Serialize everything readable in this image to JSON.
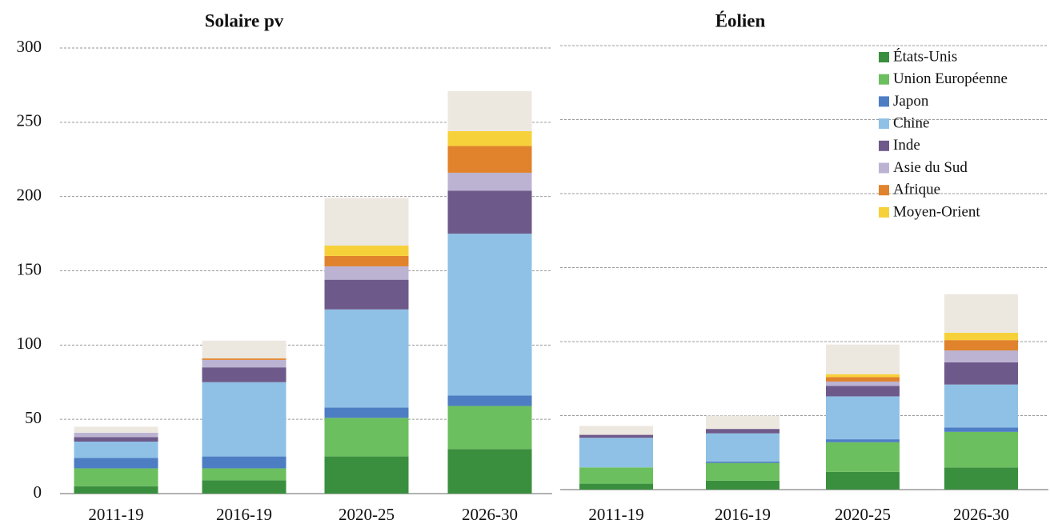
{
  "chart_data": [
    {
      "type": "stacked_bar",
      "title": "Solaire pv",
      "categories": [
        "2011-19",
        "2016-19",
        "2020-25",
        "2026-30"
      ],
      "ylim": [
        0,
        300
      ],
      "yticks": [
        0,
        50,
        100,
        150,
        200,
        250,
        300
      ],
      "grid": true,
      "ytick_labels": true,
      "series": [
        {
          "color": "#3a8f3e",
          "values": [
            5,
            9,
            25,
            30
          ]
        },
        {
          "color": "#6cbf5e",
          "values": [
            12,
            8,
            26,
            29
          ]
        },
        {
          "color": "#4d7ec4",
          "values": [
            7,
            8,
            7,
            7
          ]
        },
        {
          "color": "#8fc1e6",
          "values": [
            11,
            50,
            66,
            109
          ]
        },
        {
          "color": "#6e5a8a",
          "values": [
            3,
            10,
            20,
            29
          ]
        },
        {
          "color": "#bcb3d3",
          "values": [
            3,
            5,
            9,
            12
          ]
        },
        {
          "color": "#e0832c",
          "values": [
            0,
            1,
            7,
            18
          ]
        },
        {
          "color": "#f7d13a",
          "values": [
            0,
            0,
            7,
            10
          ]
        },
        {
          "color": "#ece8e0",
          "values": [
            4,
            12,
            32,
            27
          ]
        }
      ]
    },
    {
      "type": "stacked_bar",
      "title": "Éolien",
      "categories": [
        "2011-19",
        "2016-19",
        "2020-25",
        "2026-30"
      ],
      "ylim": [
        0,
        300
      ],
      "yticks": [
        0,
        50,
        100,
        150,
        200,
        250,
        300
      ],
      "grid": true,
      "ytick_labels": false,
      "legend": "upper right",
      "series": [
        {
          "name": "États-Unis",
          "color": "#3a8f3e",
          "values": [
            4,
            6,
            12,
            15
          ]
        },
        {
          "name": "Union Européenne",
          "color": "#6cbf5e",
          "values": [
            11,
            12,
            20,
            24
          ]
        },
        {
          "name": "Japon",
          "color": "#4d7ec4",
          "values": [
            0,
            1,
            2,
            3
          ]
        },
        {
          "name": "Chine",
          "color": "#8fc1e6",
          "values": [
            20,
            19,
            29,
            29
          ]
        },
        {
          "name": "Inde",
          "color": "#6e5a8a",
          "values": [
            2,
            3,
            7,
            15
          ]
        },
        {
          "name": "Asie du Sud",
          "color": "#bcb3d3",
          "values": [
            0,
            0,
            3,
            8
          ]
        },
        {
          "name": "Afrique",
          "color": "#e0832c",
          "values": [
            0,
            0,
            3,
            7
          ]
        },
        {
          "name": "Moyen-Orient",
          "color": "#f7d13a",
          "values": [
            0,
            0,
            2,
            5
          ]
        },
        {
          "color": "#ece8e0",
          "values": [
            6,
            9,
            20,
            26
          ]
        }
      ]
    }
  ]
}
